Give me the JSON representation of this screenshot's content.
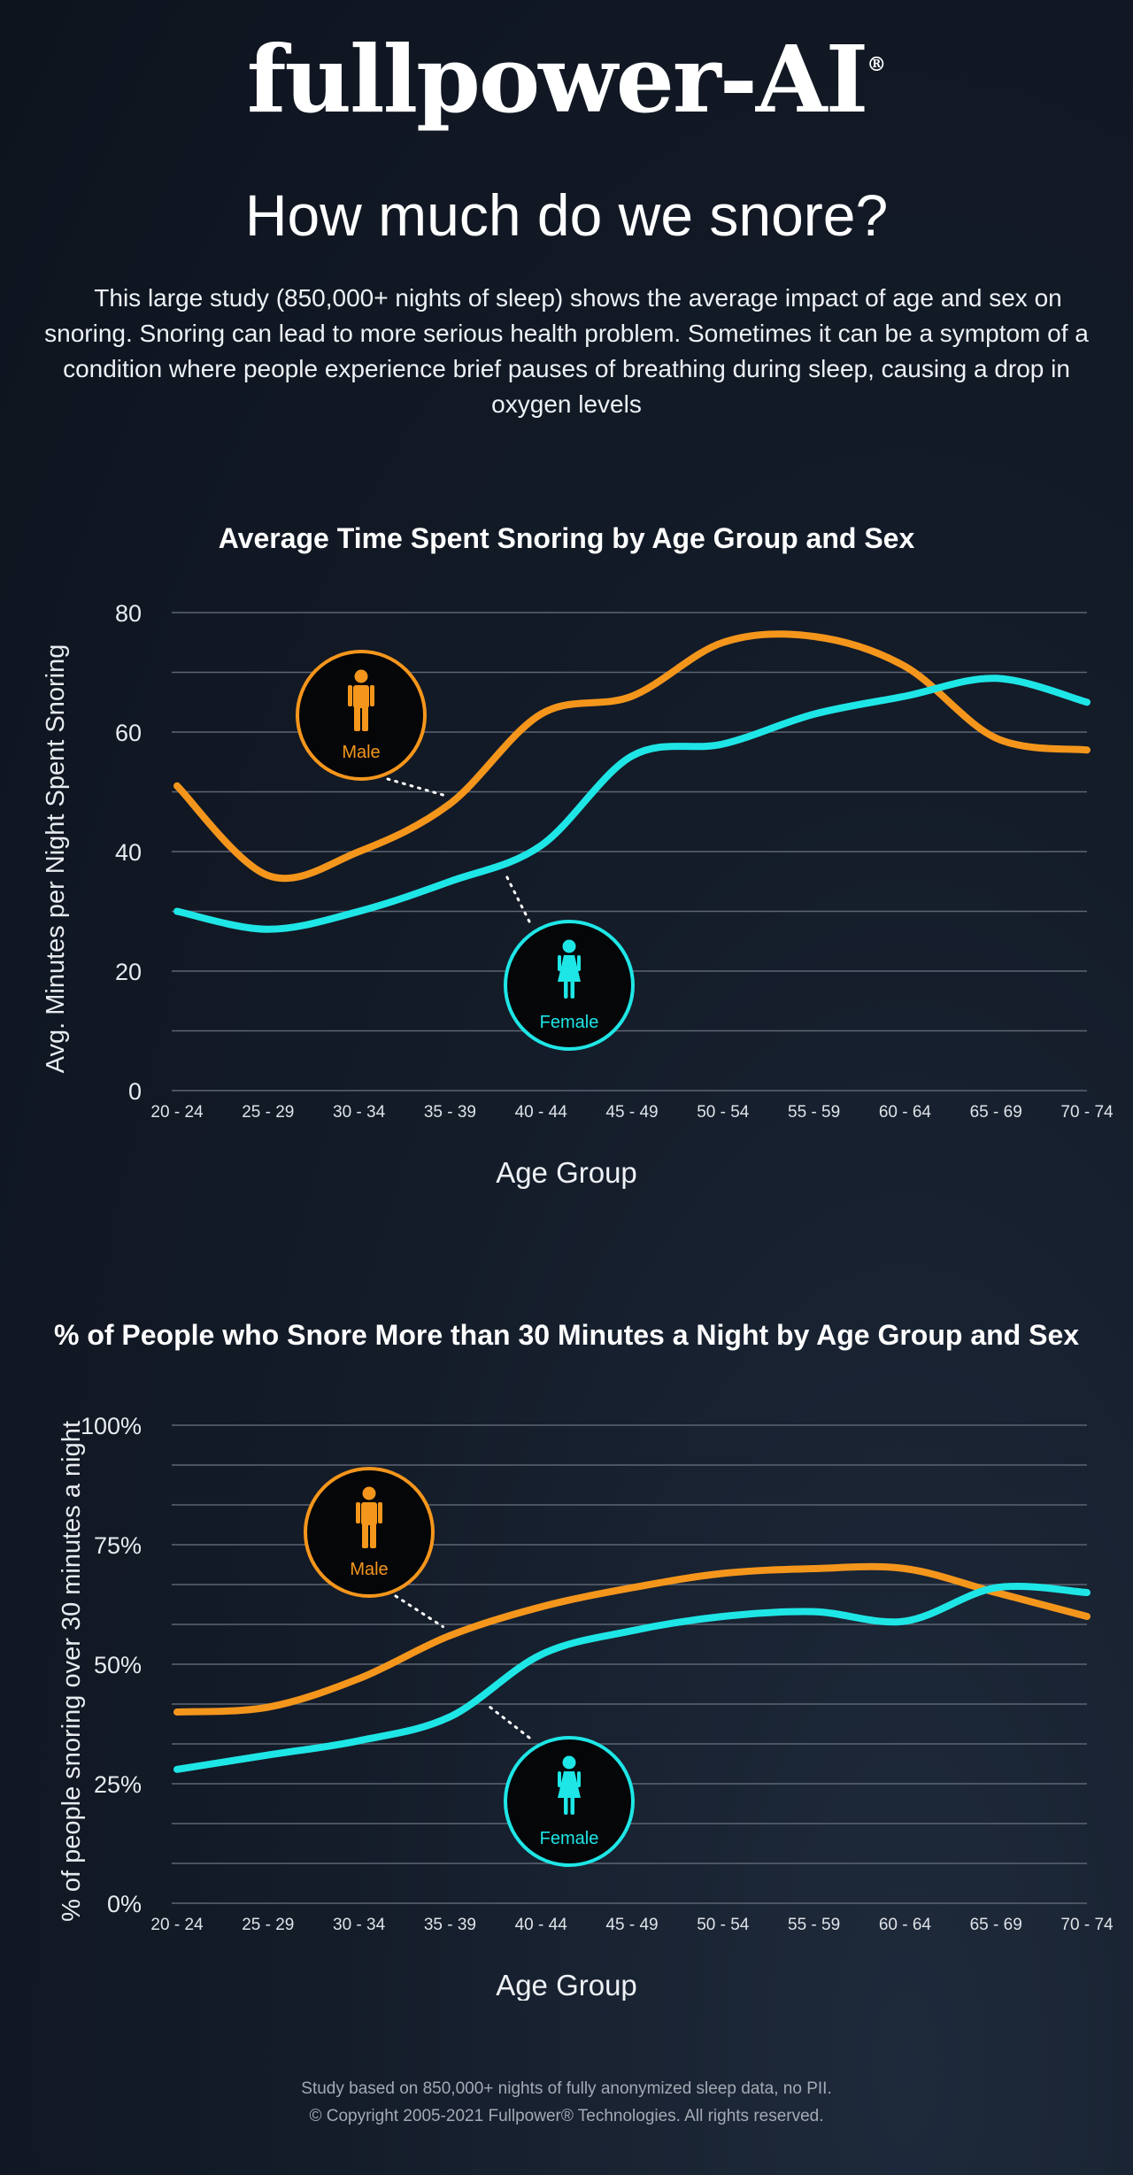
{
  "logo": {
    "text": "fullpower-AI",
    "registered": "®"
  },
  "page_title": "How much do we snore?",
  "intro": "This large study (850,000+ nights of sleep) shows the average impact of age and sex on snoring. Snoring can lead to more serious health problem. Sometimes it can be a symptom of a condition where people experience brief pauses of breathing during sleep, causing a drop in oxygen levels",
  "colors": {
    "male": "#f5961c",
    "female": "#1fe6e6",
    "grid": "#5d6572"
  },
  "chart_data": [
    {
      "type": "line",
      "title": "Average Time Spent Snoring by Age Group and Sex",
      "xlabel": "Age Group",
      "ylabel": "Avg. Minutes per Night Spent Snoring",
      "categories": [
        "20 - 24",
        "25 - 29",
        "30 - 34",
        "35 - 39",
        "40 - 44",
        "45 - 49",
        "50 - 54",
        "55 - 59",
        "60 - 64",
        "65 - 69",
        "70 - 74"
      ],
      "ylim": [
        0,
        80
      ],
      "yticks": [
        0,
        20,
        40,
        60,
        80
      ],
      "ytick_labels": [
        "0",
        "20",
        "40",
        "60",
        "80"
      ],
      "grid_step": 10,
      "series": [
        {
          "name": "Male",
          "color": "#f5961c",
          "values": [
            51,
            36,
            40,
            48,
            63,
            66,
            75,
            76,
            71,
            59,
            57
          ]
        },
        {
          "name": "Female",
          "color": "#1fe6e6",
          "values": [
            30,
            27,
            30,
            35,
            41,
            56,
            58,
            63,
            66,
            69,
            65
          ]
        }
      ],
      "legend": [
        {
          "label": "Male",
          "color": "#f5961c",
          "icon": "male-person-icon",
          "anchor_index": 3
        },
        {
          "label": "Female",
          "color": "#1fe6e6",
          "icon": "female-person-icon",
          "anchor_index": 3.6
        }
      ]
    },
    {
      "type": "line",
      "title": "% of People who Snore More than 30 Minutes a Night by Age Group and Sex",
      "xlabel": "Age Group",
      "ylabel": "% of people snoring over 30 minutes a night",
      "categories": [
        "20 - 24",
        "25 - 29",
        "30 - 34",
        "35 - 39",
        "40 - 44",
        "45 - 49",
        "50 - 54",
        "55 - 59",
        "60 - 64",
        "65 - 69",
        "70 - 74"
      ],
      "ylim": [
        0,
        100
      ],
      "yticks": [
        0,
        25,
        50,
        75,
        100
      ],
      "ytick_labels": [
        "0%",
        "25%",
        "50%",
        "75%",
        "100%"
      ],
      "grid_step": 8.333,
      "series": [
        {
          "name": "Male",
          "color": "#f5961c",
          "values": [
            40,
            41,
            47,
            56,
            62,
            66,
            69,
            70,
            70,
            65,
            60
          ]
        },
        {
          "name": "Female",
          "color": "#1fe6e6",
          "values": [
            28,
            31,
            34,
            39,
            52,
            57,
            60,
            61,
            59,
            66,
            65
          ]
        }
      ],
      "legend": [
        {
          "label": "Male",
          "color": "#f5961c",
          "icon": "male-person-icon",
          "anchor_index": 3
        },
        {
          "label": "Female",
          "color": "#1fe6e6",
          "icon": "female-person-icon",
          "anchor_index": 3.4
        }
      ]
    }
  ],
  "footer": {
    "line1": "Study based on 850,000+ nights of fully anonymized sleep data, no PII.",
    "line2": "© Copyright 2005-2021 Fullpower® Technologies. All rights reserved."
  }
}
